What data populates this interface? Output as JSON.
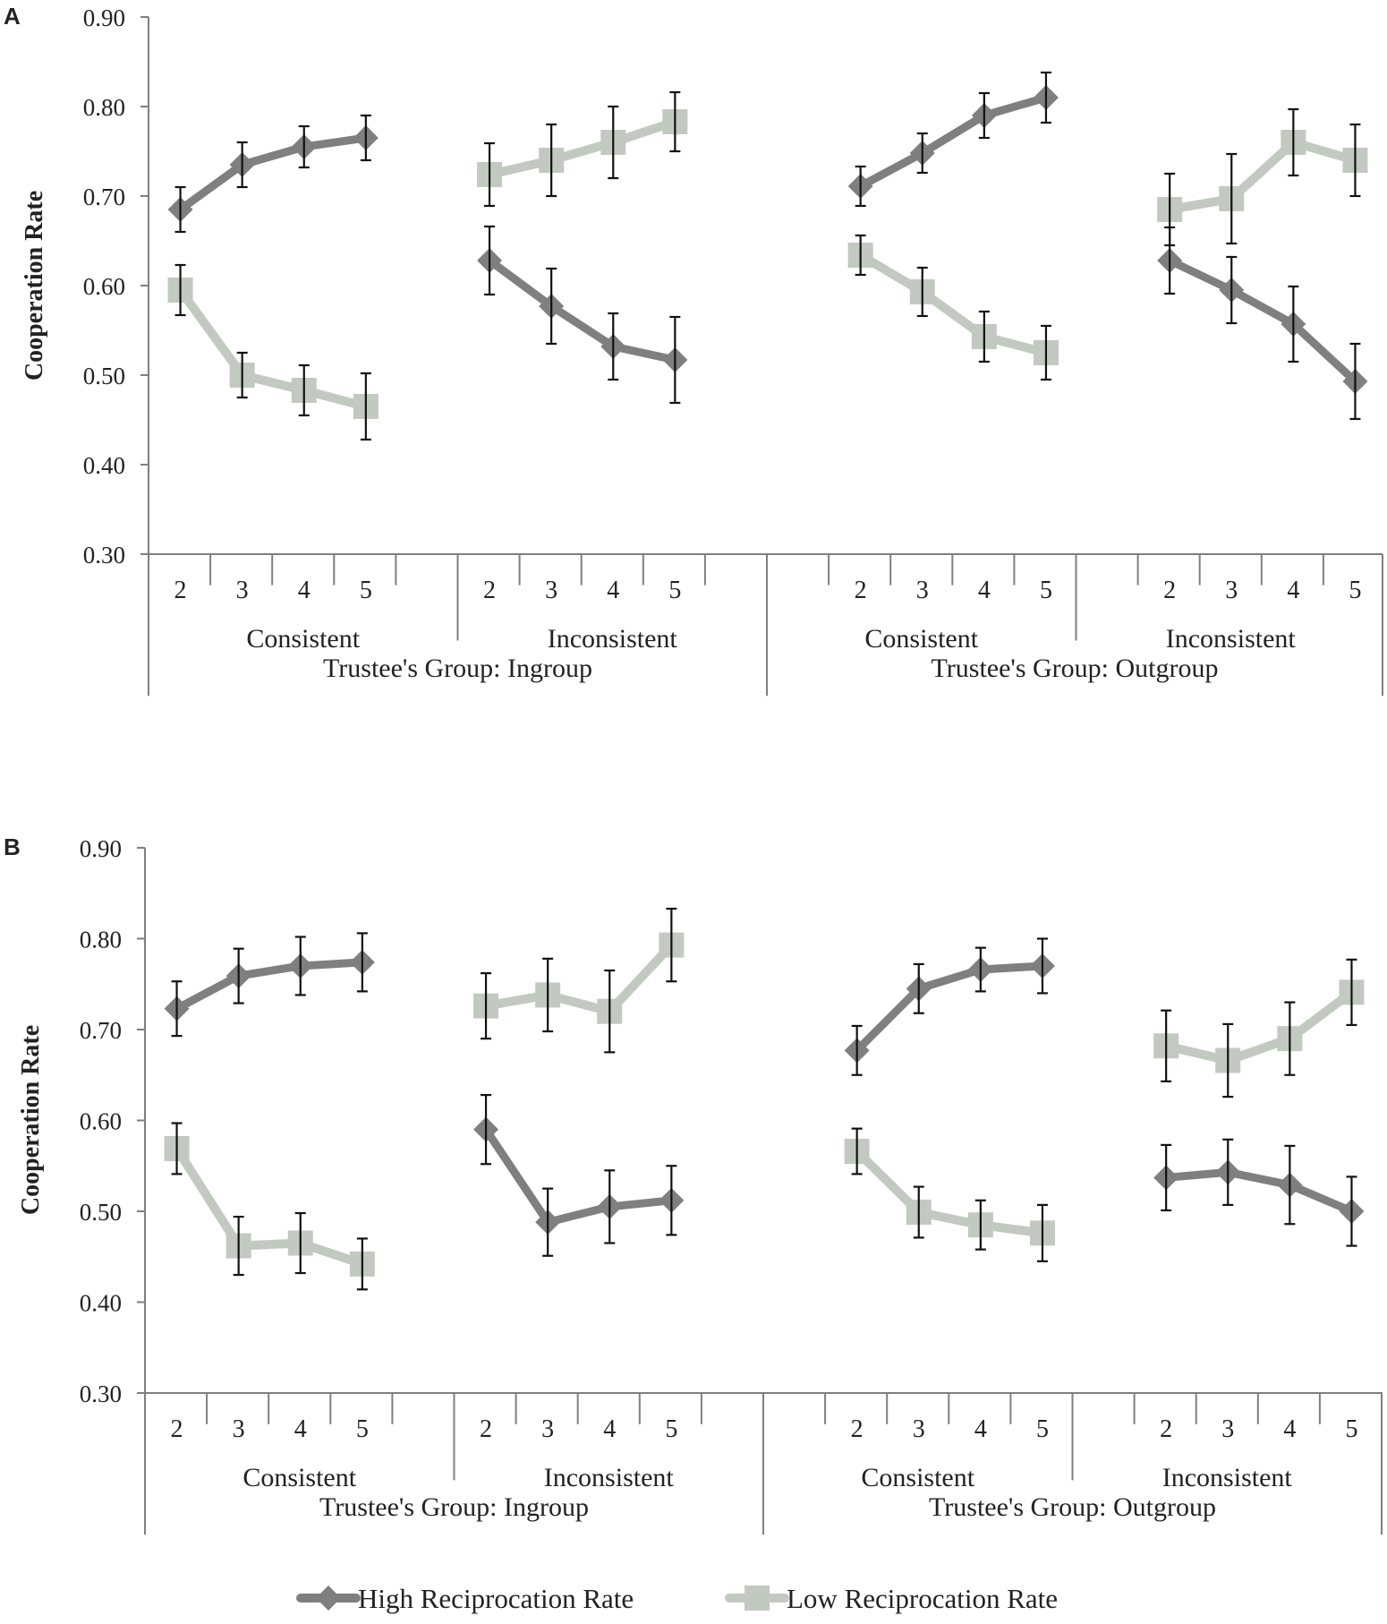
{
  "chart_data": [
    {
      "type": "line",
      "panel_label": "A",
      "ylabel": "Cooperation Rate",
      "ylim": [
        0.3,
        0.9
      ],
      "yticks": [
        "0.30",
        "0.40",
        "0.50",
        "0.60",
        "0.70",
        "0.80",
        "0.90"
      ],
      "groups": [
        {
          "label": "Trustee's Group: Ingroup",
          "subgroups": [
            {
              "label": "Consistent",
              "categories": [
                "2",
                "3",
                "4",
                "5"
              ],
              "series": [
                {
                  "name": "High Reciprocation Rate",
                  "values": [
                    0.685,
                    0.735,
                    0.755,
                    0.765
                  ],
                  "errors": [
                    0.025,
                    0.025,
                    0.023,
                    0.025
                  ]
                },
                {
                  "name": "Low Reciprocation Rate",
                  "values": [
                    0.595,
                    0.5,
                    0.483,
                    0.465
                  ],
                  "errors": [
                    0.028,
                    0.025,
                    0.028,
                    0.037
                  ]
                }
              ]
            },
            {
              "label": "Inconsistent",
              "categories": [
                "2",
                "3",
                "4",
                "5"
              ],
              "series": [
                {
                  "name": "High Reciprocation Rate",
                  "values": [
                    0.628,
                    0.577,
                    0.532,
                    0.517
                  ],
                  "errors": [
                    0.038,
                    0.042,
                    0.037,
                    0.048
                  ]
                },
                {
                  "name": "Low Reciprocation Rate",
                  "values": [
                    0.724,
                    0.74,
                    0.76,
                    0.783
                  ],
                  "errors": [
                    0.035,
                    0.04,
                    0.04,
                    0.033
                  ]
                }
              ]
            }
          ]
        },
        {
          "label": "Trustee's Group: Outgroup",
          "subgroups": [
            {
              "label": "Consistent",
              "categories": [
                "2",
                "3",
                "4",
                "5"
              ],
              "series": [
                {
                  "name": "High Reciprocation Rate",
                  "values": [
                    0.711,
                    0.748,
                    0.79,
                    0.81
                  ],
                  "errors": [
                    0.022,
                    0.022,
                    0.025,
                    0.028
                  ]
                },
                {
                  "name": "Low Reciprocation Rate",
                  "values": [
                    0.634,
                    0.593,
                    0.543,
                    0.525
                  ],
                  "errors": [
                    0.022,
                    0.027,
                    0.028,
                    0.03
                  ]
                }
              ]
            },
            {
              "label": "Inconsistent",
              "categories": [
                "2",
                "3",
                "4",
                "5"
              ],
              "series": [
                {
                  "name": "High Reciprocation Rate",
                  "values": [
                    0.628,
                    0.595,
                    0.557,
                    0.493
                  ],
                  "errors": [
                    0.037,
                    0.037,
                    0.042,
                    0.042
                  ]
                },
                {
                  "name": "Low Reciprocation Rate",
                  "values": [
                    0.685,
                    0.697,
                    0.76,
                    0.74
                  ],
                  "errors": [
                    0.04,
                    0.05,
                    0.037,
                    0.04
                  ]
                }
              ]
            }
          ]
        }
      ]
    },
    {
      "type": "line",
      "panel_label": "B",
      "ylabel": "Cooperation Rate",
      "ylim": [
        0.3,
        0.9
      ],
      "yticks": [
        "0.30",
        "0.40",
        "0.50",
        "0.60",
        "0.70",
        "0.80",
        "0.90"
      ],
      "groups": [
        {
          "label": "Trustee's Group: Ingroup",
          "subgroups": [
            {
              "label": "Consistent",
              "categories": [
                "2",
                "3",
                "4",
                "5"
              ],
              "series": [
                {
                  "name": "High Reciprocation Rate",
                  "values": [
                    0.723,
                    0.759,
                    0.77,
                    0.774
                  ],
                  "errors": [
                    0.03,
                    0.03,
                    0.032,
                    0.032
                  ]
                },
                {
                  "name": "Low Reciprocation Rate",
                  "values": [
                    0.569,
                    0.462,
                    0.465,
                    0.442
                  ],
                  "errors": [
                    0.028,
                    0.032,
                    0.033,
                    0.028
                  ]
                }
              ]
            },
            {
              "label": "Inconsistent",
              "categories": [
                "2",
                "3",
                "4",
                "5"
              ],
              "series": [
                {
                  "name": "High Reciprocation Rate",
                  "values": [
                    0.59,
                    0.488,
                    0.505,
                    0.512
                  ],
                  "errors": [
                    0.038,
                    0.037,
                    0.04,
                    0.038
                  ]
                },
                {
                  "name": "Low Reciprocation Rate",
                  "values": [
                    0.726,
                    0.738,
                    0.72,
                    0.793
                  ],
                  "errors": [
                    0.036,
                    0.04,
                    0.045,
                    0.04
                  ]
                }
              ]
            }
          ]
        },
        {
          "label": "Trustee's Group: Outgroup",
          "subgroups": [
            {
              "label": "Consistent",
              "categories": [
                "2",
                "3",
                "4",
                "5"
              ],
              "series": [
                {
                  "name": "High Reciprocation Rate",
                  "values": [
                    0.677,
                    0.745,
                    0.766,
                    0.77
                  ],
                  "errors": [
                    0.027,
                    0.027,
                    0.024,
                    0.03
                  ]
                },
                {
                  "name": "Low Reciprocation Rate",
                  "values": [
                    0.566,
                    0.499,
                    0.485,
                    0.476
                  ],
                  "errors": [
                    0.025,
                    0.028,
                    0.027,
                    0.031
                  ]
                }
              ]
            },
            {
              "label": "Inconsistent",
              "categories": [
                "2",
                "3",
                "4",
                "5"
              ],
              "series": [
                {
                  "name": "High Reciprocation Rate",
                  "values": [
                    0.537,
                    0.543,
                    0.529,
                    0.5
                  ],
                  "errors": [
                    0.036,
                    0.036,
                    0.043,
                    0.038
                  ]
                },
                {
                  "name": "Low Reciprocation Rate",
                  "values": [
                    0.682,
                    0.666,
                    0.69,
                    0.741
                  ],
                  "errors": [
                    0.039,
                    0.04,
                    0.04,
                    0.036
                  ]
                }
              ]
            }
          ]
        }
      ]
    }
  ],
  "legend": {
    "items": [
      {
        "name": "High Reciprocation Rate",
        "color": "#7f7f7f",
        "marker": "diamond"
      },
      {
        "name": "Low Reciprocation Rate",
        "color": "#c2c9c1",
        "marker": "square"
      }
    ]
  },
  "colors": {
    "high": "#7f7f7f",
    "low": "#c2c9c1",
    "axis": "#7f7f7f",
    "error": "#111111",
    "text": "#222222"
  }
}
